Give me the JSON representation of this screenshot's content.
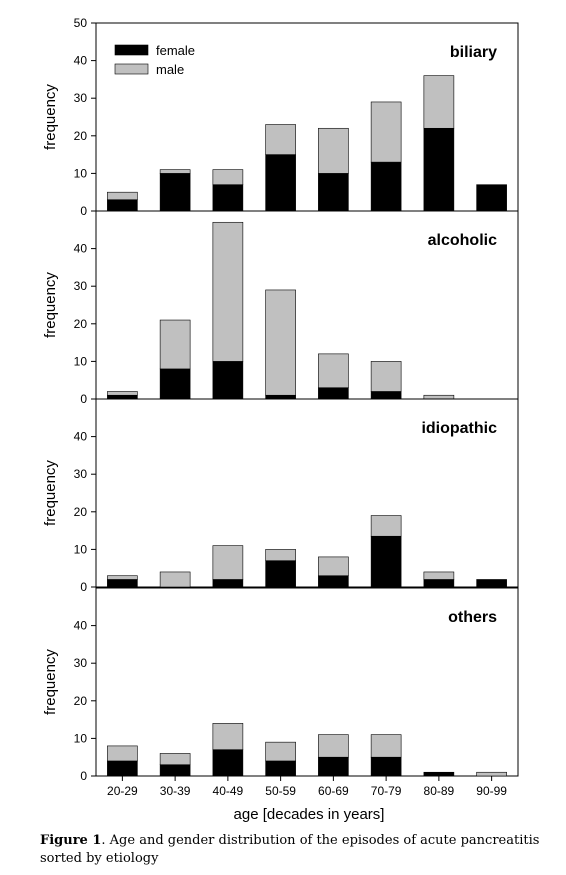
{
  "caption": {
    "label": "Figure 1",
    "text": ". Age and gender distribution of the episodes of acute pancreatitis sorted by etiology"
  },
  "colors": {
    "female": "#000000",
    "male": "#c0c0c0",
    "axis": "#000000"
  },
  "chart_data": {
    "type": "bar",
    "stacked": true,
    "categories": [
      "20-29",
      "30-39",
      "40-49",
      "50-59",
      "60-69",
      "70-79",
      "80-89",
      "90-99"
    ],
    "xlabel": "age [decades in years]",
    "ylabel": "frequency",
    "legend": {
      "position": "top-left",
      "entries": [
        "female",
        "male"
      ]
    },
    "grid": false,
    "panels": [
      {
        "title": "biliary",
        "ylim": [
          0,
          50
        ],
        "yticks": [
          0,
          10,
          20,
          30,
          40,
          50
        ],
        "series": [
          {
            "name": "female",
            "values": [
              3,
              10,
              7,
              15,
              10,
              13,
              22,
              7
            ]
          },
          {
            "name": "male",
            "values": [
              2,
              1,
              4,
              8,
              12,
              16,
              14,
              0
            ]
          }
        ]
      },
      {
        "title": "alcoholic",
        "ylim": [
          0,
          50
        ],
        "yticks": [
          0,
          10,
          20,
          30,
          40
        ],
        "series": [
          {
            "name": "female",
            "values": [
              1,
              8,
              10,
              1,
              3,
              2,
              0,
              0
            ]
          },
          {
            "name": "male",
            "values": [
              1,
              13,
              37,
              28,
              9,
              8,
              1,
              0
            ]
          }
        ]
      },
      {
        "title": "idiopathic",
        "ylim": [
          0,
          50
        ],
        "yticks": [
          0,
          10,
          20,
          30,
          40
        ],
        "series": [
          {
            "name": "female",
            "values": [
              2,
              0,
              2,
              7,
              3,
              13.5,
              2,
              2
            ]
          },
          {
            "name": "male",
            "values": [
              1,
              4,
              9,
              3,
              5,
              5.5,
              2,
              0
            ]
          }
        ]
      },
      {
        "title": "others",
        "ylim": [
          0,
          50
        ],
        "yticks": [
          0,
          10,
          20,
          30,
          40
        ],
        "series": [
          {
            "name": "female",
            "values": [
              4,
              3,
              7,
              4,
              5,
              5,
              1,
              0
            ]
          },
          {
            "name": "male",
            "values": [
              4,
              3,
              7,
              5,
              6,
              6,
              0,
              1
            ]
          }
        ]
      }
    ]
  }
}
